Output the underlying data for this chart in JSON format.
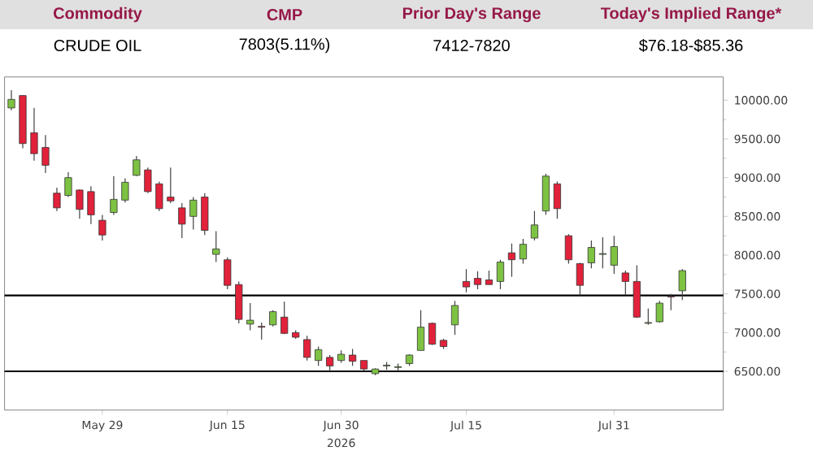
{
  "chart_data": {
    "type": "candlestick",
    "annotations": [
      "Commodity",
      "CMP",
      "Prior Day's Range",
      "Today's Implied Range*",
      "CRUDE OIL",
      "7803(5.11%)",
      "7412-7820",
      "$76.18-$85.36"
    ],
    "xlabel": "2026",
    "categories": [
      null,
      null,
      null,
      null,
      null,
      null,
      null,
      null,
      "May 29",
      null,
      null,
      null,
      null,
      null,
      null,
      null,
      null,
      null,
      null,
      "Jun 15",
      null,
      null,
      null,
      null,
      null,
      null,
      null,
      null,
      null,
      "Jun 30",
      null,
      null,
      null,
      null,
      null,
      null,
      null,
      null,
      null,
      null,
      "Jul 15",
      null,
      null,
      null,
      null,
      null,
      null,
      null,
      null,
      null,
      null,
      null,
      null,
      "Jul 31",
      null,
      null,
      null,
      null,
      null,
      null
    ],
    "ohlc": [
      [
        9900,
        10130,
        9870,
        10010
      ],
      [
        10060,
        10060,
        9380,
        9440
      ],
      [
        9580,
        9900,
        9220,
        9310
      ],
      [
        9390,
        9550,
        9060,
        9160
      ],
      [
        8800,
        8870,
        8570,
        8610
      ],
      [
        8770,
        9070,
        8750,
        9000
      ],
      [
        8840,
        8850,
        8470,
        8590
      ],
      [
        8820,
        8890,
        8400,
        8520
      ],
      [
        8450,
        8520,
        8190,
        8260
      ],
      [
        8550,
        9020,
        8520,
        8720
      ],
      [
        8710,
        8990,
        8680,
        8940
      ],
      [
        9030,
        9280,
        9020,
        9230
      ],
      [
        9100,
        9130,
        8800,
        8820
      ],
      [
        8920,
        8950,
        8570,
        8600
      ],
      [
        8750,
        9130,
        8670,
        8700
      ],
      [
        8610,
        8670,
        8220,
        8400
      ],
      [
        8500,
        8750,
        8330,
        8710
      ],
      [
        8750,
        8800,
        8260,
        8320
      ],
      [
        8010,
        8310,
        7910,
        8080
      ],
      [
        7940,
        7970,
        7560,
        7610
      ],
      [
        7620,
        7660,
        7120,
        7170
      ],
      [
        7110,
        7380,
        7030,
        7160
      ],
      [
        7080,
        7130,
        6910,
        7070
      ],
      [
        7100,
        7290,
        7080,
        7270
      ],
      [
        7200,
        7400,
        6980,
        6990
      ],
      [
        7000,
        7030,
        6920,
        6940
      ],
      [
        6910,
        6960,
        6640,
        6680
      ],
      [
        6640,
        6820,
        6570,
        6780
      ],
      [
        6680,
        6710,
        6500,
        6570
      ],
      [
        6640,
        6770,
        6610,
        6720
      ],
      [
        6710,
        6790,
        6570,
        6630
      ],
      [
        6640,
        6640,
        6510,
        6530
      ],
      [
        6470,
        6540,
        6450,
        6530
      ],
      [
        6570,
        6620,
        6520,
        6580
      ],
      [
        6550,
        6600,
        6500,
        6560
      ],
      [
        6600,
        6720,
        6570,
        6710
      ],
      [
        6770,
        7290,
        6770,
        7070
      ],
      [
        7120,
        7130,
        6840,
        6850
      ],
      [
        6900,
        6920,
        6790,
        6820
      ],
      [
        7100,
        7410,
        6970,
        7350
      ],
      [
        7660,
        7820,
        7520,
        7590
      ],
      [
        7700,
        7790,
        7560,
        7620
      ],
      [
        7680,
        7800,
        7620,
        7620
      ],
      [
        7660,
        7940,
        7560,
        7910
      ],
      [
        8030,
        8150,
        7720,
        7940
      ],
      [
        7950,
        8210,
        7890,
        8140
      ],
      [
        8220,
        8570,
        8190,
        8390
      ],
      [
        8570,
        9050,
        8520,
        9020
      ],
      [
        8920,
        8950,
        8470,
        8600
      ],
      [
        8250,
        8270,
        7890,
        7940
      ],
      [
        7890,
        7900,
        7480,
        7610
      ],
      [
        7900,
        8190,
        7830,
        8100
      ],
      [
        8010,
        8230,
        7830,
        8020
      ],
      [
        7870,
        8250,
        7760,
        8110
      ],
      [
        7770,
        7800,
        7490,
        7660
      ],
      [
        7660,
        7870,
        7190,
        7200
      ],
      [
        7120,
        7310,
        7100,
        7130
      ],
      [
        7140,
        7410,
        7130,
        7380
      ],
      [
        7470,
        7500,
        7290,
        7460
      ],
      [
        7540,
        7820,
        7420,
        7800
      ]
    ],
    "colors": [
      "#7dc242",
      "#e2213a",
      "#e2213a",
      "#e2213a",
      "#e2213a",
      "#7dc242",
      "#e2213a",
      "#e2213a",
      "#e2213a",
      "#7dc242",
      "#7dc242",
      "#7dc242",
      "#e2213a",
      "#e2213a",
      "#e2213a",
      "#e2213a",
      "#7dc242",
      "#e2213a",
      "#7dc242",
      "#e2213a",
      "#e2213a",
      "#7dc242",
      "#e2213a",
      "#7dc242",
      "#e2213a",
      "#e2213a",
      "#e2213a",
      "#7dc242",
      "#e2213a",
      "#7dc242",
      "#e2213a",
      "#e2213a",
      "#7dc242",
      "#7dc242",
      "#7dc242",
      "#7dc242",
      "#7dc242",
      "#e2213a",
      "#e2213a",
      "#7dc242",
      "#e2213a",
      "#e2213a",
      "#e2213a",
      "#7dc242",
      "#e2213a",
      "#7dc242",
      "#7dc242",
      "#7dc242",
      "#e2213a",
      "#e2213a",
      "#e2213a",
      "#7dc242",
      "#7dc242",
      "#7dc242",
      "#e2213a",
      "#e2213a",
      "#7dc242",
      "#7dc242",
      "#e2213a",
      "#7dc242"
    ],
    "ylim": [
      6000,
      10300
    ],
    "yticks": [
      {
        "value": 6500,
        "label": "6500.00"
      },
      {
        "value": 7000,
        "label": "7000.00"
      },
      {
        "value": 7500,
        "label": "7500.00"
      },
      {
        "value": 8000,
        "label": "8000.00"
      },
      {
        "value": 8500,
        "label": "8500.00"
      },
      {
        "value": 9000,
        "label": "9000.00"
      },
      {
        "value": 9500,
        "label": "9500.00"
      },
      {
        "value": 10000,
        "label": "10000.00"
      }
    ],
    "ref_lines": [
      {
        "axis": "y",
        "value": 7480,
        "color": "#000000"
      },
      {
        "axis": "y",
        "value": 6500,
        "color": "#000000"
      }
    ],
    "grid": false
  }
}
